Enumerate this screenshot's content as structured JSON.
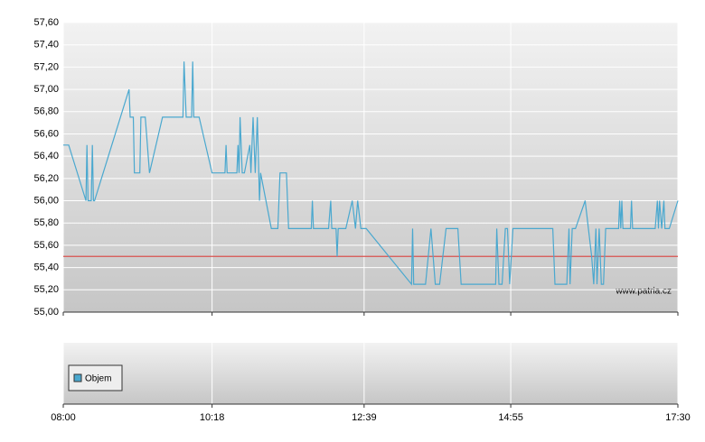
{
  "chart_data": {
    "type": "line",
    "color": "#4aa8cf",
    "x": [
      "08:00",
      "08:05",
      "08:21",
      "08:22",
      "08:23",
      "08:26",
      "08:27",
      "08:28",
      "08:29",
      "09:01",
      "09:02",
      "09:05",
      "09:06",
      "09:11",
      "09:12",
      "09:16",
      "09:20",
      "09:32",
      "09:51",
      "09:52",
      "09:53",
      "09:54",
      "09:59",
      "10:00",
      "10:01",
      "10:06",
      "10:18",
      "10:30",
      "10:31",
      "10:32",
      "10:41",
      "10:42",
      "10:43",
      "10:44",
      "10:46",
      "10:48",
      "10:53",
      "10:54",
      "10:56",
      "10:58",
      "11:00",
      "11:02",
      "11:03",
      "11:13",
      "11:19",
      "11:21",
      "11:27",
      "11:29",
      "11:50",
      "11:51",
      "11:52",
      "12:06",
      "12:08",
      "12:09",
      "12:13",
      "12:14",
      "12:15",
      "12:22",
      "12:28",
      "12:31",
      "12:33",
      "12:36",
      "12:41",
      "13:23",
      "13:24",
      "13:25",
      "13:36",
      "13:41",
      "13:45",
      "13:49",
      "13:55",
      "14:06",
      "14:09",
      "14:41",
      "14:42",
      "14:44",
      "14:47",
      "14:50",
      "14:52",
      "14:54",
      "14:57",
      "15:34",
      "15:36",
      "15:47",
      "15:49",
      "15:50",
      "15:52",
      "15:55",
      "16:04",
      "16:10",
      "16:12",
      "16:14",
      "16:15",
      "16:17",
      "16:19",
      "16:21",
      "16:23",
      "16:35",
      "16:36",
      "16:37",
      "16:38",
      "16:39",
      "16:46",
      "16:47",
      "16:48",
      "17:09",
      "17:11",
      "17:12",
      "17:13",
      "17:15",
      "17:17",
      "17:18",
      "17:22",
      "17:30"
    ],
    "values": [
      56.5,
      56.5,
      56.0,
      56.5,
      56.0,
      56.0,
      56.5,
      56.0,
      56.0,
      57.0,
      56.75,
      56.75,
      56.25,
      56.25,
      56.75,
      56.75,
      56.25,
      56.75,
      56.75,
      57.25,
      57.0,
      56.75,
      56.75,
      57.25,
      56.75,
      56.75,
      56.25,
      56.25,
      56.5,
      56.25,
      56.25,
      56.5,
      56.25,
      56.75,
      56.25,
      56.25,
      56.5,
      56.25,
      56.75,
      56.25,
      56.75,
      56.0,
      56.25,
      55.75,
      55.75,
      56.25,
      56.25,
      55.75,
      55.75,
      56.0,
      55.75,
      55.75,
      56.0,
      55.75,
      55.75,
      55.5,
      55.75,
      55.75,
      56.0,
      55.75,
      56.0,
      55.75,
      55.75,
      55.25,
      55.75,
      55.25,
      55.25,
      55.75,
      55.25,
      55.25,
      55.75,
      55.75,
      55.25,
      55.25,
      55.75,
      55.25,
      55.25,
      55.75,
      55.75,
      55.25,
      55.75,
      55.75,
      55.25,
      55.25,
      55.75,
      55.25,
      55.75,
      55.75,
      56.0,
      55.5,
      55.25,
      55.75,
      55.25,
      55.75,
      55.25,
      55.25,
      55.75,
      55.75,
      56.0,
      55.75,
      56.0,
      55.75,
      55.75,
      56.0,
      55.75,
      55.75,
      56.0,
      55.75,
      56.0,
      55.75,
      56.0,
      55.75,
      55.75,
      56.0
    ],
    "xlim": [
      "08:00",
      "17:30"
    ],
    "xticks": [
      "08:00",
      "10:18",
      "12:39",
      "14:55",
      "17:30"
    ],
    "ylim": [
      55.0,
      57.6
    ],
    "yticks": [
      {
        "value": 55.0,
        "label": "55,00"
      },
      {
        "value": 55.2,
        "label": "55,20"
      },
      {
        "value": 55.4,
        "label": "55,40"
      },
      {
        "value": 55.6,
        "label": "55,60"
      },
      {
        "value": 55.8,
        "label": "55,80"
      },
      {
        "value": 56.0,
        "label": "56,00"
      },
      {
        "value": 56.2,
        "label": "56,20"
      },
      {
        "value": 56.4,
        "label": "56,40"
      },
      {
        "value": 56.6,
        "label": "56,60"
      },
      {
        "value": 56.8,
        "label": "56,80"
      },
      {
        "value": 57.0,
        "label": "57,00"
      },
      {
        "value": 57.2,
        "label": "57,20"
      },
      {
        "value": 57.4,
        "label": "57,40"
      },
      {
        "value": 57.6,
        "label": "57,60"
      }
    ],
    "grid": true,
    "reference_line": 55.5,
    "reference_color": "#d9534f",
    "watermark": "www.patria.cz",
    "volume_legend": "Objem",
    "volume_color": "#4aa8cf"
  }
}
